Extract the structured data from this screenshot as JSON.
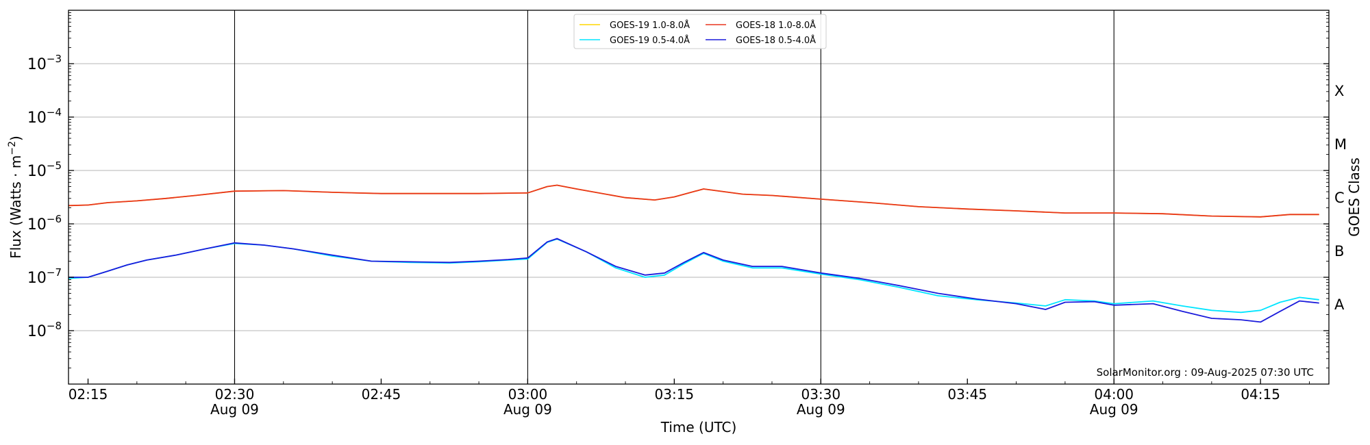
{
  "chart_data": {
    "type": "line",
    "ylabel": "Flux (Watts · m",
    "ylabel_sup": "−2",
    "ylabel_close": ")",
    "xlabel": "Time (UTC)",
    "right_label": "GOES Class",
    "yscale": "log",
    "ylim": [
      1e-09,
      0.01
    ],
    "y_ticks": [
      {
        "value": 1e-08,
        "mant": "10",
        "exp": "−8"
      },
      {
        "value": 1e-07,
        "mant": "10",
        "exp": "−7"
      },
      {
        "value": 1e-06,
        "mant": "10",
        "exp": "−6"
      },
      {
        "value": 1e-05,
        "mant": "10",
        "exp": "−5"
      },
      {
        "value": 0.0001,
        "mant": "10",
        "exp": "−4"
      },
      {
        "value": 0.001,
        "mant": "10",
        "exp": "−3"
      }
    ],
    "xlim": [
      "02:13",
      "04:22"
    ],
    "x_ticks": [
      {
        "time": "02:15",
        "label": "02:15",
        "date": ""
      },
      {
        "time": "02:30",
        "label": "02:30",
        "date": "Aug 09"
      },
      {
        "time": "02:45",
        "label": "02:45",
        "date": ""
      },
      {
        "time": "03:00",
        "label": "03:00",
        "date": "Aug 09"
      },
      {
        "time": "03:15",
        "label": "03:15",
        "date": ""
      },
      {
        "time": "03:30",
        "label": "03:30",
        "date": "Aug 09"
      },
      {
        "time": "03:45",
        "label": "03:45",
        "date": ""
      },
      {
        "time": "04:00",
        "label": "04:00",
        "date": "Aug 09"
      },
      {
        "time": "04:15",
        "label": "04:15",
        "date": ""
      }
    ],
    "vlines": [
      "02:30",
      "03:00",
      "03:30",
      "04:00"
    ],
    "goes_classes": [
      {
        "label": "A",
        "low": 1e-08,
        "high": 1e-07
      },
      {
        "label": "B",
        "low": 1e-07,
        "high": 1e-06
      },
      {
        "label": "C",
        "low": 1e-06,
        "high": 1e-05
      },
      {
        "label": "M",
        "low": 1e-05,
        "high": 0.0001
      },
      {
        "label": "X",
        "low": 0.0001,
        "high": 0.001
      }
    ],
    "grid": true,
    "legend": {
      "placement": "top-center",
      "columns": 2,
      "order": [
        0,
        2,
        1,
        3
      ]
    },
    "series": [
      {
        "name": "GOES-19 1.0-8.0Å",
        "color": "#ffd700",
        "x": [
          "02:13",
          "02:15",
          "02:17",
          "02:20",
          "02:23",
          "02:26",
          "02:30",
          "02:35",
          "02:40",
          "02:45",
          "02:50",
          "02:55",
          "03:00",
          "03:02",
          "03:03",
          "03:05",
          "03:10",
          "03:13",
          "03:15",
          "03:18",
          "03:22",
          "03:25",
          "03:30",
          "03:35",
          "03:40",
          "03:45",
          "03:50",
          "03:55",
          "04:00",
          "04:05",
          "04:10",
          "04:15",
          "04:18",
          "04:21"
        ],
        "values": [
          2.2e-06,
          2.25e-06,
          2.5e-06,
          2.7e-06,
          3e-06,
          3.4e-06,
          4.1e-06,
          4.2e-06,
          3.9e-06,
          3.7e-06,
          3.7e-06,
          3.7e-06,
          3.8e-06,
          5e-06,
          5.3e-06,
          4.5e-06,
          3.1e-06,
          2.8e-06,
          3.2e-06,
          4.5e-06,
          3.6e-06,
          3.4e-06,
          2.9e-06,
          2.5e-06,
          2.1e-06,
          1.9e-06,
          1.75e-06,
          1.6e-06,
          1.6e-06,
          1.55e-06,
          1.4e-06,
          1.35e-06,
          1.5e-06,
          1.5e-06
        ]
      },
      {
        "name": "GOES-18 1.0-8.0Å",
        "color": "#e8351e",
        "x": [
          "02:13",
          "02:15",
          "02:17",
          "02:20",
          "02:23",
          "02:26",
          "02:30",
          "02:35",
          "02:40",
          "02:45",
          "02:50",
          "02:55",
          "03:00",
          "03:02",
          "03:03",
          "03:05",
          "03:10",
          "03:13",
          "03:15",
          "03:18",
          "03:22",
          "03:25",
          "03:30",
          "03:35",
          "03:40",
          "03:45",
          "03:50",
          "03:55",
          "04:00",
          "04:05",
          "04:10",
          "04:15",
          "04:18",
          "04:21"
        ],
        "values": [
          2.2e-06,
          2.25e-06,
          2.5e-06,
          2.7e-06,
          3e-06,
          3.4e-06,
          4.1e-06,
          4.2e-06,
          3.9e-06,
          3.7e-06,
          3.7e-06,
          3.7e-06,
          3.8e-06,
          5e-06,
          5.3e-06,
          4.5e-06,
          3.1e-06,
          2.8e-06,
          3.2e-06,
          4.5e-06,
          3.6e-06,
          3.4e-06,
          2.9e-06,
          2.5e-06,
          2.1e-06,
          1.9e-06,
          1.75e-06,
          1.6e-06,
          1.6e-06,
          1.55e-06,
          1.4e-06,
          1.35e-06,
          1.5e-06,
          1.5e-06
        ]
      },
      {
        "name": "GOES-19 0.5-4.0Å",
        "color": "#00e5ff",
        "x": [
          "02:13",
          "02:15",
          "02:17",
          "02:19",
          "02:21",
          "02:24",
          "02:27",
          "02:30",
          "02:33",
          "02:36",
          "02:40",
          "02:44",
          "02:48",
          "02:52",
          "02:55",
          "02:58",
          "03:00",
          "03:02",
          "03:03",
          "03:06",
          "03:09",
          "03:12",
          "03:14",
          "03:16",
          "03:18",
          "03:20",
          "03:23",
          "03:26",
          "03:30",
          "03:34",
          "03:38",
          "03:42",
          "03:46",
          "03:50",
          "03:53",
          "03:55",
          "03:58",
          "04:00",
          "04:04",
          "04:07",
          "04:10",
          "04:13",
          "04:15",
          "04:17",
          "04:19",
          "04:21"
        ],
        "values": [
          9.5e-08,
          1e-07,
          1.3e-07,
          1.7e-07,
          2.1e-07,
          2.6e-07,
          3.4e-07,
          4.3e-07,
          4e-07,
          3.4e-07,
          2.5e-07,
          2e-07,
          1.9e-07,
          1.85e-07,
          1.95e-07,
          2.1e-07,
          2.2e-07,
          4.5e-07,
          5.2e-07,
          3e-07,
          1.5e-07,
          1e-07,
          1.1e-07,
          1.8e-07,
          2.8e-07,
          2e-07,
          1.5e-07,
          1.5e-07,
          1.15e-07,
          9e-08,
          6.5e-08,
          4.5e-08,
          3.8e-08,
          3.3e-08,
          2.9e-08,
          3.8e-08,
          3.6e-08,
          3.2e-08,
          3.6e-08,
          2.9e-08,
          2.4e-08,
          2.2e-08,
          2.4e-08,
          3.4e-08,
          4.2e-08,
          3.8e-08
        ]
      },
      {
        "name": "GOES-18 0.5-4.0Å",
        "color": "#1a1adb",
        "x": [
          "02:13",
          "02:15",
          "02:17",
          "02:19",
          "02:21",
          "02:24",
          "02:27",
          "02:30",
          "02:33",
          "02:36",
          "02:40",
          "02:44",
          "02:48",
          "02:52",
          "02:55",
          "02:58",
          "03:00",
          "03:02",
          "03:03",
          "03:06",
          "03:09",
          "03:12",
          "03:14",
          "03:16",
          "03:18",
          "03:20",
          "03:23",
          "03:26",
          "03:30",
          "03:34",
          "03:38",
          "03:42",
          "03:46",
          "03:50",
          "03:53",
          "03:55",
          "03:58",
          "04:00",
          "04:04",
          "04:07",
          "04:10",
          "04:13",
          "04:15",
          "04:17",
          "04:19",
          "04:21"
        ],
        "values": [
          1e-07,
          1e-07,
          1.3e-07,
          1.7e-07,
          2.1e-07,
          2.6e-07,
          3.4e-07,
          4.4e-07,
          4e-07,
          3.4e-07,
          2.6e-07,
          2e-07,
          1.95e-07,
          1.9e-07,
          2e-07,
          2.15e-07,
          2.3e-07,
          4.6e-07,
          5.3e-07,
          3e-07,
          1.6e-07,
          1.1e-07,
          1.2e-07,
          1.9e-07,
          2.9e-07,
          2.1e-07,
          1.6e-07,
          1.6e-07,
          1.2e-07,
          9.5e-08,
          7e-08,
          5e-08,
          3.9e-08,
          3.2e-08,
          2.5e-08,
          3.4e-08,
          3.5e-08,
          3e-08,
          3.2e-08,
          2.3e-08,
          1.7e-08,
          1.6e-08,
          1.45e-08,
          2.3e-08,
          3.6e-08,
          3.3e-08
        ]
      }
    ],
    "annotation": "SolarMonitor.org : 09-Aug-2025 07:30 UTC"
  }
}
